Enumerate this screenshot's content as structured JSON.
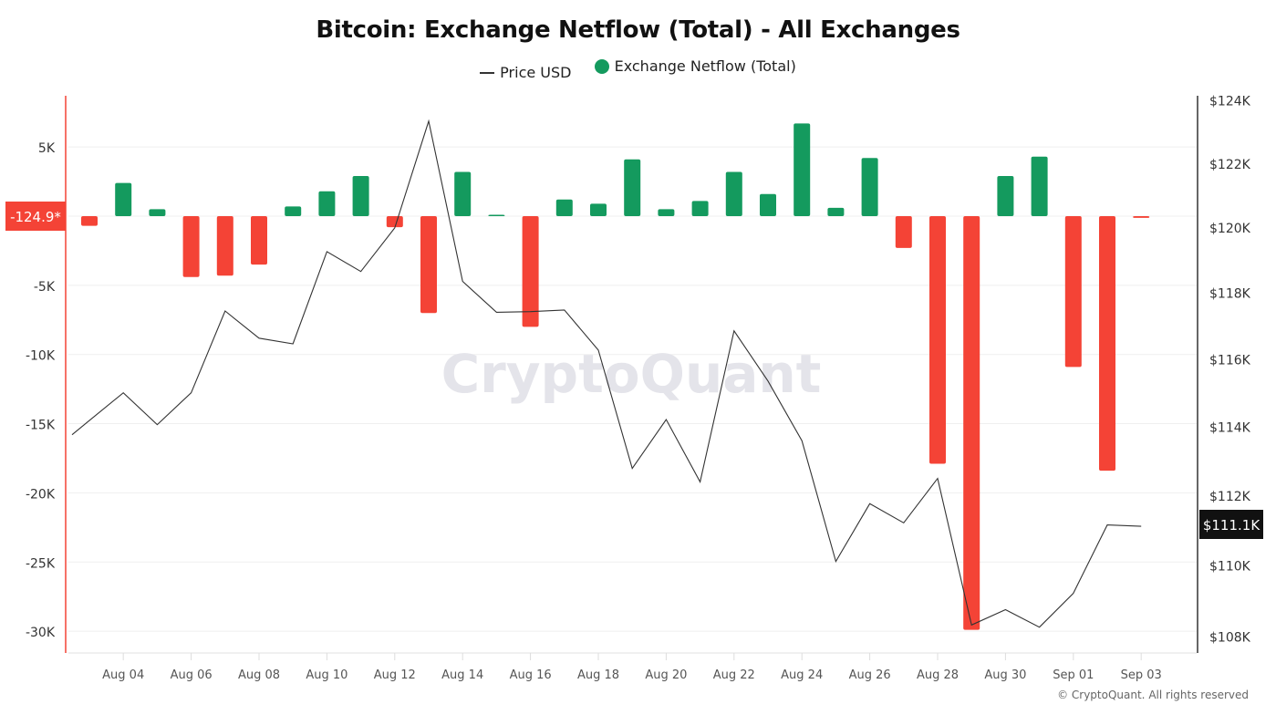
{
  "chart_data": {
    "type": "bar+line",
    "title": "Bitcoin: Exchange Netflow (Total) - All Exchanges",
    "legend": [
      {
        "name": "Price USD",
        "type": "line",
        "color": "#333333"
      },
      {
        "name": "Exchange Netflow (Total)",
        "type": "bar",
        "color": "#149a5e"
      }
    ],
    "legend_position": "top-center",
    "watermark": "CryptoQuant",
    "copyright": "© CryptoQuant. All rights reserved",
    "x": [
      "Aug 03",
      "Aug 04",
      "Aug 05",
      "Aug 06",
      "Aug 07",
      "Aug 08",
      "Aug 09",
      "Aug 10",
      "Aug 11",
      "Aug 12",
      "Aug 13",
      "Aug 14",
      "Aug 15",
      "Aug 16",
      "Aug 17",
      "Aug 18",
      "Aug 19",
      "Aug 20",
      "Aug 21",
      "Aug 22",
      "Aug 23",
      "Aug 24",
      "Aug 25",
      "Aug 26",
      "Aug 27",
      "Aug 28",
      "Aug 29",
      "Aug 30",
      "Aug 31",
      "Sep 01",
      "Sep 02",
      "Sep 03"
    ],
    "x_tick_labels": [
      "Aug 04",
      "Aug 06",
      "Aug 08",
      "Aug 10",
      "Aug 12",
      "Aug 14",
      "Aug 16",
      "Aug 18",
      "Aug 20",
      "Aug 22",
      "Aug 24",
      "Aug 26",
      "Aug 28",
      "Aug 30",
      "Sep 01",
      "Sep 03"
    ],
    "series": [
      {
        "name": "Exchange Netflow (Total)",
        "axis": "left",
        "unit": "BTC",
        "positive_color": "#149a5e",
        "negative_color": "#f44336",
        "values": [
          -700,
          2400,
          500,
          -4400,
          -4300,
          -3500,
          700,
          1800,
          2900,
          -800,
          -7000,
          3200,
          100,
          -8000,
          1200,
          900,
          4100,
          500,
          1100,
          3200,
          1600,
          6700,
          600,
          4200,
          -2300,
          -17900,
          -29900,
          2900,
          4300,
          -10900,
          -18400,
          -124.9
        ]
      },
      {
        "name": "Price USD",
        "axis": "right",
        "unit": "USD",
        "color": "#333333",
        "values": [
          114170,
          114990,
          114050,
          114990,
          117440,
          116620,
          116450,
          119250,
          118640,
          119980,
          123330,
          118340,
          117400,
          117420,
          117470,
          116260,
          112770,
          114200,
          112380,
          116840,
          115340,
          113580,
          110100,
          111750,
          111200,
          112480,
          108310,
          108740,
          108250,
          109200,
          111140,
          111100
        ]
      }
    ],
    "left_axis": {
      "ticks": [
        5000,
        -5000,
        -10000,
        -15000,
        -20000,
        -25000,
        -30000
      ],
      "tick_labels": [
        "5K",
        "-5K",
        "-10K",
        "-15K",
        "-20K",
        "-25K",
        "-30K"
      ],
      "current_value_label": "-124.9*",
      "color": "#f44336"
    },
    "right_axis": {
      "ticks": [
        124000,
        122000,
        120000,
        118000,
        116000,
        114000,
        112000,
        110000,
        108000
      ],
      "tick_labels": [
        "$124K",
        "$122K",
        "$120K",
        "$118K",
        "$116K",
        "$114K",
        "$112K",
        "$110K",
        "$108K"
      ],
      "scale": "log",
      "current_value_label": "$111.1K",
      "ylim": [
        108000,
        124000
      ]
    },
    "ylim_left": [
      -31000,
      8500
    ],
    "grid": true
  }
}
